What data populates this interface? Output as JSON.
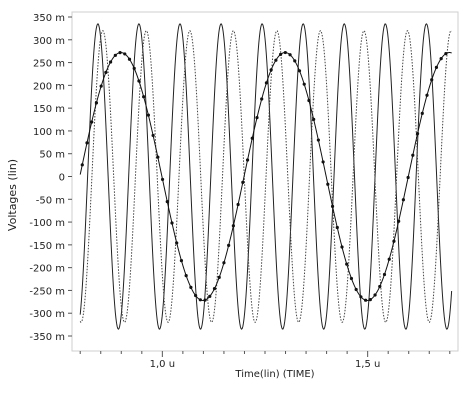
{
  "chart_data": {
    "type": "line",
    "title": "",
    "xlabel": "Time(lin) (TIME)",
    "ylabel": "Voltages (lin)",
    "xlim": [
      0.78,
      1.72
    ],
    "ylim": [
      -360,
      360
    ],
    "y_unit": "m",
    "x_ticks": [
      {
        "value": 1.0,
        "label": "1,0 u"
      },
      {
        "value": 1.5,
        "label": "1,5 u"
      }
    ],
    "y_ticks": [
      {
        "value": 350,
        "label": "350 m"
      },
      {
        "value": 300,
        "label": "300 m"
      },
      {
        "value": 250,
        "label": "250 m"
      },
      {
        "value": 200,
        "label": "200 m"
      },
      {
        "value": 150,
        "label": "150 m"
      },
      {
        "value": 100,
        "label": "100 m"
      },
      {
        "value": 50,
        "label": "50 m"
      },
      {
        "value": 0,
        "label": "0"
      },
      {
        "value": -50,
        "label": "-50 m"
      },
      {
        "value": -100,
        "label": "-100 m"
      },
      {
        "value": -150,
        "label": "-150 m"
      },
      {
        "value": -200,
        "label": "-200 m"
      },
      {
        "value": -250,
        "label": "-250 m"
      },
      {
        "value": -300,
        "label": "-300 m"
      },
      {
        "value": -350,
        "label": "-350 m"
      }
    ],
    "grid": false,
    "legend": "none",
    "series": [
      {
        "style": "solid",
        "amplitude_mV": 335,
        "period_us": 0.1,
        "peak_times_us": [
          0.843,
          0.943,
          1.043,
          1.143,
          1.243,
          1.343,
          1.443,
          1.543,
          1.643
        ],
        "color": "#222222"
      },
      {
        "style": "dotted",
        "amplitude_mV": 320,
        "period_us": 0.106,
        "peak_times_us": [
          0.855,
          0.961,
          1.067,
          1.173,
          1.279,
          1.385,
          1.491,
          1.597
        ],
        "color": "#444444"
      },
      {
        "style": "solid-with-markers",
        "amplitude_mV": 272,
        "period_us": 0.4,
        "peak_times_us": [
          0.899,
          1.299
        ],
        "trough_times_us": [
          1.099,
          1.499
        ],
        "color": "#111111"
      }
    ]
  }
}
